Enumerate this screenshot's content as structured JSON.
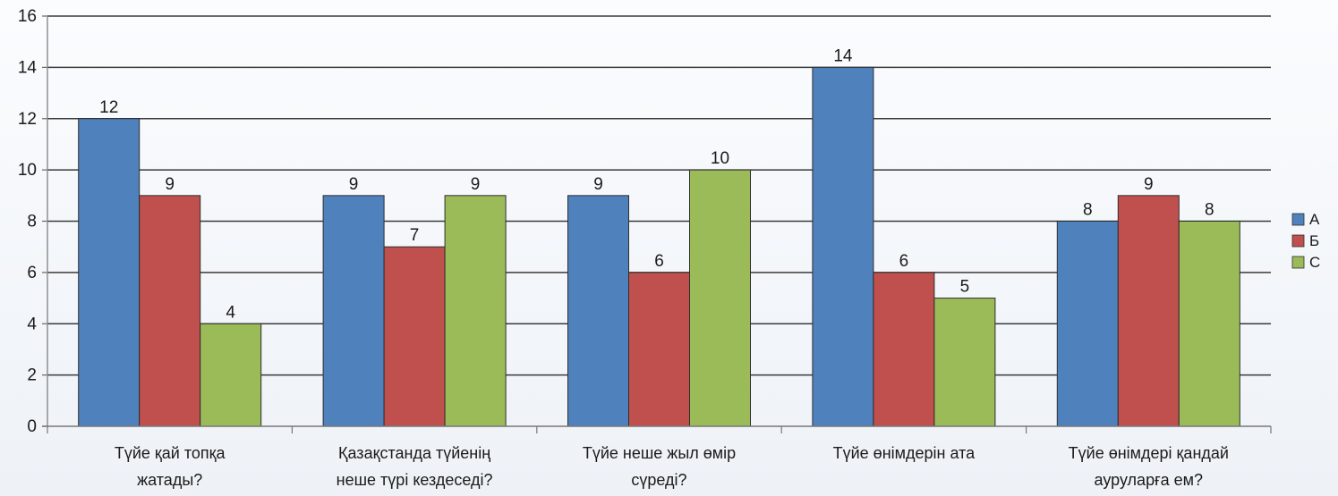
{
  "chart_data": {
    "type": "bar",
    "categories": [
      [
        "Түйе қай топқа",
        "жатады?"
      ],
      [
        "Қазақстанда түйенің",
        "неше түрі кездеседі?"
      ],
      [
        "Түйе неше жыл өмір",
        "сүреді?"
      ],
      [
        "Түйе өнімдерін ата"
      ],
      [
        "Түйе өнімдері қандай",
        "ауруларға ем?"
      ]
    ],
    "series": [
      {
        "name": "А",
        "color": "#4f81bd",
        "values": [
          12,
          9,
          9,
          14,
          8
        ]
      },
      {
        "name": "Б",
        "color": "#c0504d",
        "values": [
          9,
          7,
          6,
          6,
          9
        ]
      },
      {
        "name": "С",
        "color": "#9bbb59",
        "values": [
          4,
          9,
          10,
          5,
          8
        ]
      }
    ],
    "ylim": [
      0,
      16
    ],
    "yticks": [
      0,
      2,
      4,
      6,
      8,
      10,
      12,
      14,
      16
    ],
    "grid": true,
    "legend": "right",
    "data_labels": true
  }
}
